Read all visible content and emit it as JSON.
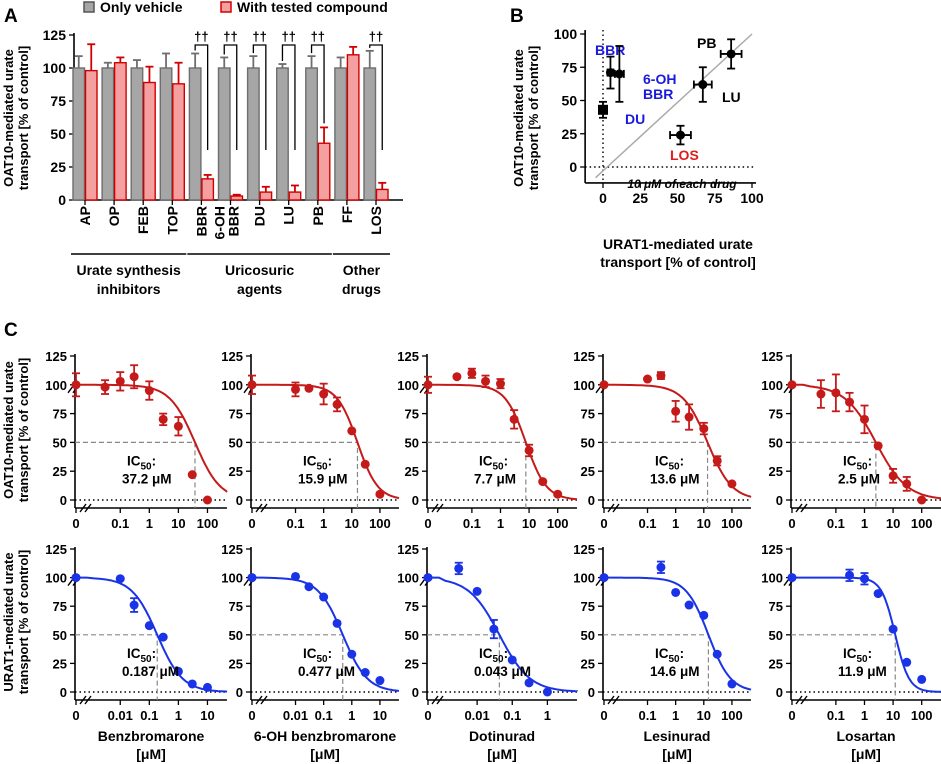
{
  "figure": {
    "panel_a_label": "A",
    "panel_b_label": "B",
    "panel_c_label": "C"
  },
  "chart_data": [
    {
      "panel": "A",
      "type": "bar",
      "legend": [
        "Only vehicle",
        "With tested compound"
      ],
      "ylabel_line1": "OAT10-mediated urate",
      "ylabel_line2": "transport [% of control]",
      "ylim": [
        0,
        125
      ],
      "yticks": [
        "0",
        "25",
        "50",
        "75",
        "100",
        "125"
      ],
      "categories": [
        "AP",
        "OP",
        "FEB",
        "TOP",
        "BBR",
        "6-OH\nBBR",
        "DU",
        "LU",
        "PB",
        "FF",
        "LOS"
      ],
      "series": [
        {
          "name": "Only vehicle",
          "color": "#a6a6a6",
          "values": [
            100,
            100,
            100,
            100,
            100,
            100,
            100,
            100,
            100,
            100,
            100
          ],
          "errors": [
            9,
            4,
            6,
            11,
            11,
            8,
            9,
            3,
            9,
            8,
            13
          ]
        },
        {
          "name": "With tested compound",
          "color": "#f4a0a0",
          "values": [
            98,
            104,
            89,
            88,
            16,
            3,
            6,
            6,
            43,
            110,
            8
          ],
          "errors": [
            20,
            4,
            12,
            16,
            3,
            1,
            4,
            5,
            12,
            6,
            5
          ]
        }
      ],
      "significance": {
        "marker": "††",
        "categories": [
          "BBR",
          "6-OH\nBBR",
          "DU",
          "LU",
          "PB",
          "LOS"
        ]
      },
      "groups": [
        {
          "line1": "Urate synthesis",
          "line2": "inhibitors"
        },
        {
          "line1": "Uricosuric",
          "line2": "agents"
        },
        {
          "line1": "Other",
          "line2": "drugs"
        }
      ]
    },
    {
      "panel": "B",
      "type": "scatter",
      "xlabel_line1": "URAT1-mediated urate",
      "xlabel_line2": "transport [% of control]",
      "ylabel_line1": "OAT10-mediated urate",
      "ylabel_line2": "transport [% of control]",
      "xlim": [
        -10,
        100
      ],
      "ylim": [
        -10,
        100
      ],
      "xticks": [
        "0",
        "25",
        "50",
        "75",
        "100"
      ],
      "yticks": [
        "0",
        "25",
        "50",
        "75",
        "100"
      ],
      "annotation": "10 μM of each drug",
      "points": [
        {
          "label": "BBR",
          "x": 5,
          "y": 71,
          "xerr": 2,
          "yerr": 12,
          "color": "#1a1adb"
        },
        {
          "label": "6-OH BBR",
          "x": 11,
          "y": 70,
          "xerr": 3,
          "yerr": 21,
          "color": "#1a1adb"
        },
        {
          "label": "DU",
          "x": 0,
          "y": 43,
          "xerr": 2,
          "yerr": 6,
          "color": "#1a1adb"
        },
        {
          "label": "PB",
          "x": 86,
          "y": 85,
          "xerr": 7,
          "yerr": 11,
          "color": "#000000"
        },
        {
          "label": "LU",
          "x": 67,
          "y": 62,
          "xerr": 6,
          "yerr": 13,
          "color": "#000000"
        },
        {
          "label": "LOS",
          "x": 52,
          "y": 24,
          "xerr": 7,
          "yerr": 7,
          "color": "#e01c1c"
        }
      ]
    },
    {
      "panel": "C",
      "type": "line",
      "description": "Dose-response inhibition curves",
      "ylabel_top_line1": "OAT10-mediated urate",
      "ylabel_top_line2": "transport [% of control]",
      "ylabel_bottom_line1": "URAT1-mediated urate",
      "ylabel_bottom_line2": "transport [% of control]",
      "ylim": [
        0,
        125
      ],
      "yticks": [
        "0",
        "25",
        "50",
        "75",
        "100",
        "125"
      ],
      "top_color": "#c41a1a",
      "bottom_color": "#1a33e6",
      "ic50_prefix": "IC",
      "ic50_sub": "50",
      "ic50_suffix": ":",
      "drugs": [
        {
          "name": "Benzbromarone",
          "unit": "[μM]",
          "top": {
            "xticks": [
              "0",
              "0.1",
              "1",
              "10",
              "100"
            ],
            "xlog": [
              -1.8,
              2.5
            ],
            "ic50": 37.2,
            "ic50_text": "37.2 μM",
            "hill": 1.0,
            "conc": [
              0.03,
              0.1,
              0.3,
              1,
              3,
              10,
              30,
              100
            ],
            "values": [
              98,
              103,
              107,
              95,
              70,
              64,
              22,
              0
            ],
            "errors": [
              6,
              8,
              10,
              8,
              5,
              8,
              0,
              0
            ],
            "zero": {
              "value": 100,
              "error": 10
            }
          },
          "bottom": {
            "xticks": [
              "0",
              "0.01",
              "0.1",
              "1",
              "10"
            ],
            "xlog": [
              -2.8,
              1.5
            ],
            "ic50": 0.187,
            "ic50_text": "0.187 μM",
            "hill": 1.0,
            "conc": [
              0.01,
              0.03,
              0.1,
              0.3,
              1,
              3,
              10
            ],
            "values": [
              99,
              76,
              58,
              48,
              18,
              7,
              4
            ],
            "errors": [
              0,
              6,
              0,
              0,
              0,
              0,
              0
            ],
            "zero": {
              "value": 100,
              "error": 0
            }
          }
        },
        {
          "name": "6-OH benzbromarone",
          "unit": "[μM]",
          "top": {
            "xticks": [
              "0",
              "0.1",
              "1",
              "10",
              "100"
            ],
            "xlog": [
              -1.8,
              2.5
            ],
            "ic50": 15.9,
            "ic50_text": "15.9 μM",
            "hill": 1.2,
            "conc": [
              0.1,
              0.3,
              1,
              3,
              10,
              30,
              100
            ],
            "values": [
              96,
              97,
              92,
              83,
              60,
              31,
              5
            ],
            "errors": [
              6,
              0,
              9,
              6,
              0,
              0,
              0
            ],
            "zero": {
              "value": 100,
              "error": 8
            }
          },
          "bottom": {
            "xticks": [
              "0",
              "0.01",
              "0.1",
              "1",
              "10"
            ],
            "xlog": [
              -2.8,
              1.5
            ],
            "ic50": 0.477,
            "ic50_text": "0.477 μM",
            "hill": 1.0,
            "conc": [
              0.01,
              0.03,
              0.1,
              0.3,
              1,
              3,
              10
            ],
            "values": [
              101,
              92,
              83,
              60,
              33,
              17,
              10
            ],
            "errors": [
              0,
              0,
              0,
              0,
              0,
              0,
              0
            ],
            "zero": {
              "value": 100,
              "error": 0
            }
          }
        },
        {
          "name": "Dotinurad",
          "unit": "[μM]",
          "top": {
            "xticks": [
              "0",
              "0.1",
              "1",
              "10",
              "100"
            ],
            "xlog": [
              -1.8,
              2.5
            ],
            "ic50": 7.7,
            "ic50_text": "7.7 μM",
            "hill": 1.2,
            "conc": [
              0.03,
              0.1,
              0.3,
              1,
              3,
              10,
              30,
              100
            ],
            "values": [
              107,
              110,
              103,
              101,
              70,
              43,
              16,
              5
            ],
            "errors": [
              0,
              4,
              5,
              4,
              8,
              5,
              0,
              0
            ],
            "zero": {
              "value": 100,
              "error": 7
            }
          },
          "bottom": {
            "xticks": [
              "0",
              "0.01",
              "0.1",
              "1"
            ],
            "xlog": [
              -2.8,
              0.7
            ],
            "ic50": 0.043,
            "ic50_text": "0.043 μM",
            "hill": 1.0,
            "conc": [
              0.003,
              0.01,
              0.03,
              0.1,
              0.3,
              1
            ],
            "values": [
              108,
              88,
              55,
              28,
              8,
              0
            ],
            "errors": [
              5,
              0,
              8,
              0,
              0,
              0
            ],
            "zero": {
              "value": 100,
              "error": 0
            }
          }
        },
        {
          "name": "Lesinurad",
          "unit": "[μM]",
          "top": {
            "xticks": [
              "0",
              "0.1",
              "1",
              "10",
              "100"
            ],
            "xlog": [
              -1.8,
              2.5
            ],
            "ic50": 13.6,
            "ic50_text": "13.6 μM",
            "hill": 1.0,
            "conc": [
              0.1,
              0.3,
              1,
              3,
              10,
              30,
              100
            ],
            "values": [
              105,
              108,
              77,
              72,
              62,
              34,
              14
            ],
            "errors": [
              0,
              3,
              9,
              11,
              5,
              4,
              0
            ],
            "zero": {
              "value": 100,
              "error": 0
            }
          },
          "bottom": {
            "xticks": [
              "0",
              "0.1",
              "1",
              "10",
              "100"
            ],
            "xlog": [
              -1.8,
              2.5
            ],
            "ic50": 14.6,
            "ic50_text": "14.6 μM",
            "hill": 1.1,
            "conc": [
              0.3,
              1,
              3,
              10,
              30,
              100
            ],
            "values": [
              109,
              87,
              76,
              67,
              33,
              7
            ],
            "errors": [
              5,
              0,
              0,
              0,
              0,
              0
            ],
            "zero": {
              "value": 100,
              "error": 0
            }
          }
        },
        {
          "name": "Losartan",
          "unit": "[μM]",
          "top": {
            "xticks": [
              "0",
              "0.1",
              "1",
              "10",
              "100"
            ],
            "xlog": [
              -1.8,
              2.5
            ],
            "ic50": 2.5,
            "ic50_text": "2.5 μM",
            "hill": 0.8,
            "conc": [
              0.03,
              0.1,
              0.3,
              1,
              3,
              10,
              30,
              100
            ],
            "values": [
              92,
              93,
              85,
              70,
              47,
              21,
              14,
              0
            ],
            "errors": [
              12,
              16,
              8,
              12,
              0,
              6,
              6,
              0
            ],
            "zero": {
              "value": 100,
              "error": 0
            }
          },
          "bottom": {
            "xticks": [
              "0",
              "0.1",
              "1",
              "10",
              "100"
            ],
            "xlog": [
              -1.8,
              2.5
            ],
            "ic50": 11.9,
            "ic50_text": "11.9 μM",
            "hill": 1.8,
            "conc": [
              0.3,
              1,
              3,
              10,
              30,
              100
            ],
            "values": [
              102,
              99,
              86,
              55,
              26,
              11
            ],
            "errors": [
              5,
              5,
              0,
              0,
              0,
              0
            ],
            "zero": {
              "value": 100,
              "error": 0
            }
          }
        }
      ]
    }
  ]
}
